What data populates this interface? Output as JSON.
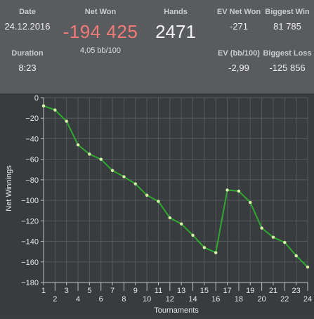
{
  "stats": {
    "date_label": "Date",
    "date_value": "24.12.2016",
    "duration_label": "Duration",
    "duration_value": "8:23",
    "net_won_label": "Net Won",
    "net_won_value": "-194 425",
    "net_won_sub": "4,05 bb/100",
    "hands_label": "Hands",
    "hands_value": "2471",
    "ev_net_won_label": "EV Net Won",
    "ev_net_won_value": "-271",
    "ev_bb_label": "EV (bb/100)",
    "ev_bb_value": "-2,99",
    "biggest_win_label": "Biggest Win",
    "biggest_win_value": "81 785",
    "biggest_loss_label": "Biggest Loss",
    "biggest_loss_value": "-125 856"
  },
  "colors": {
    "line": "#2ea82e",
    "point": "#d9f2a8",
    "net_won": "#f07a78",
    "grid": "#55585b"
  },
  "chart_data": {
    "type": "line",
    "xlabel": "Tournaments",
    "ylabel": "Net Winnings",
    "xlim": [
      1,
      24
    ],
    "ylim": [
      -180,
      0
    ],
    "grid": true,
    "x_ticks": [
      1,
      2,
      3,
      4,
      5,
      6,
      7,
      8,
      9,
      10,
      11,
      12,
      13,
      14,
      15,
      16,
      17,
      18,
      19,
      20,
      21,
      22,
      23,
      24
    ],
    "y_ticks": [
      0,
      -20,
      -40,
      -60,
      -80,
      -100,
      -120,
      -140,
      -160,
      -180
    ],
    "y_tick_labels": [
      "0",
      "−20",
      "−40",
      "−60",
      "−80",
      "−100",
      "−120",
      "−140",
      "−160",
      "−180"
    ],
    "x": [
      1,
      2,
      3,
      4,
      5,
      6,
      7,
      8,
      9,
      10,
      11,
      12,
      13,
      14,
      15,
      16,
      17,
      18,
      19,
      20,
      21,
      22,
      23,
      24
    ],
    "series": [
      {
        "values": [
          -8,
          -12,
          -23,
          -46,
          -55,
          -60,
          -71,
          -77,
          -84,
          -95,
          -101,
          -117,
          -123,
          -134,
          -146,
          -151,
          -90,
          -91,
          -102,
          -127,
          -136,
          -141,
          -154,
          -165
        ]
      }
    ]
  }
}
